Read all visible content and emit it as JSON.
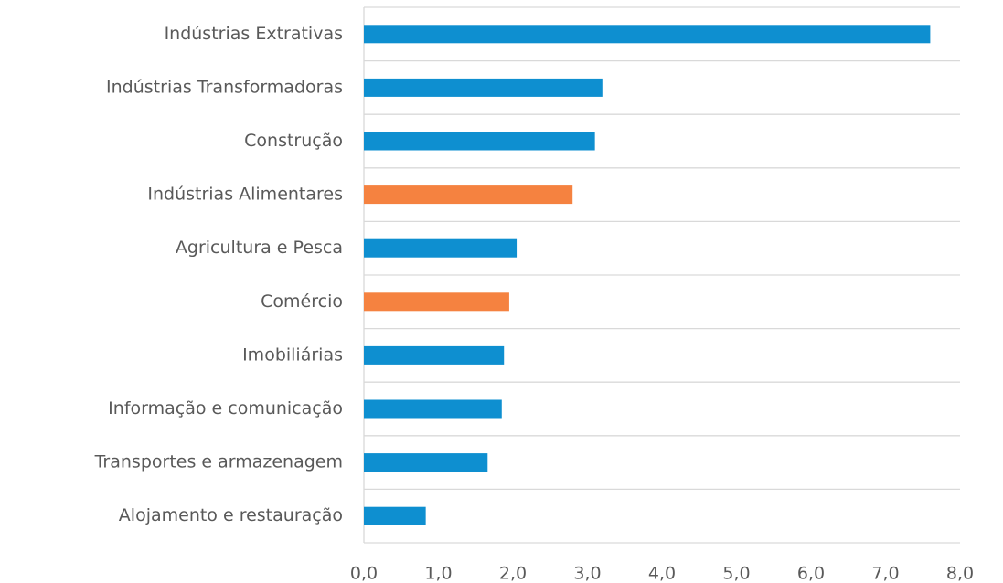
{
  "chart_data": {
    "type": "barh",
    "categories": [
      "Indústrias Extrativas",
      "Indústrias Transformadoras",
      "Construção",
      "Indústrias Alimentares",
      "Agricultura e Pesca",
      "Comércio",
      "Imobiliárias",
      "Informação e comunicação",
      "Transportes e armazenagem",
      "Alojamento e restauração"
    ],
    "values": [
      7.6,
      3.2,
      3.1,
      2.8,
      2.05,
      1.95,
      1.88,
      1.85,
      1.66,
      0.83
    ],
    "colors": [
      "#0e8fd0",
      "#0e8fd0",
      "#0e8fd0",
      "#f58240",
      "#0e8fd0",
      "#f58240",
      "#0e8fd0",
      "#0e8fd0",
      "#0e8fd0",
      "#0e8fd0"
    ],
    "xlim": [
      0,
      8
    ],
    "xticks": [
      {
        "value": 0,
        "label": "0,0"
      },
      {
        "value": 1,
        "label": "1,0"
      },
      {
        "value": 2,
        "label": "2,0"
      },
      {
        "value": 3,
        "label": "3,0"
      },
      {
        "value": 4,
        "label": "4,0"
      },
      {
        "value": 5,
        "label": "5,0"
      },
      {
        "value": 6,
        "label": "6,0"
      },
      {
        "value": 7,
        "label": "7,0"
      },
      {
        "value": 8,
        "label": "8,0"
      }
    ]
  }
}
